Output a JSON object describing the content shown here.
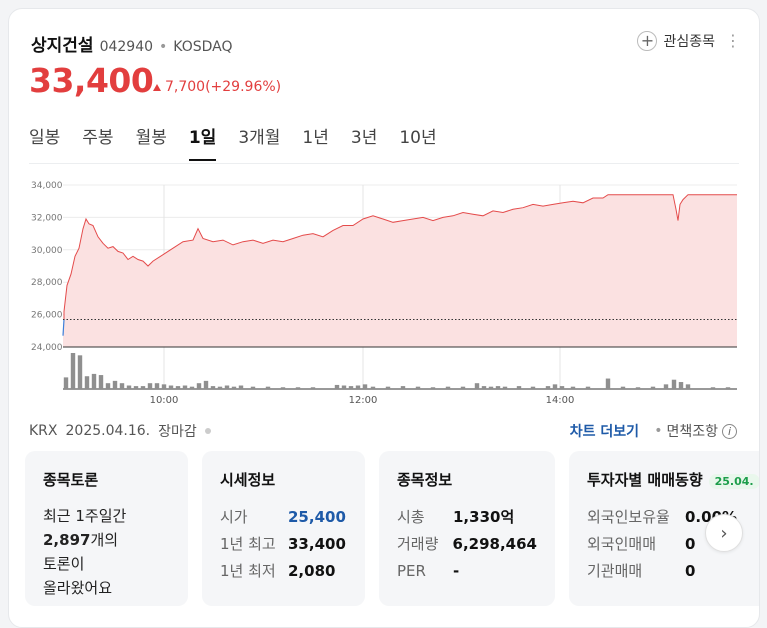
{
  "stock": {
    "name": "상지건설",
    "code": "042940",
    "sep": "•",
    "market": "KOSDAQ",
    "price": "33,400",
    "change": "7,700(+29.96%)",
    "watch_label": "관심종목",
    "more_icon": "⋮"
  },
  "tabs": [
    "일봉",
    "주봉",
    "월봉",
    "1일",
    "3개월",
    "1년",
    "3년",
    "10년"
  ],
  "active_tab": "1일",
  "meta": {
    "exchange": "KRX",
    "date": "2025.04.16.",
    "status": "장마감",
    "chart_link": "차트 더보기",
    "sep": "•",
    "disclaimer": "면책조항"
  },
  "chart_data": {
    "type": "area",
    "y_ticks": [
      "34,000",
      "32,000",
      "30,000",
      "28,000",
      "26,000",
      "24,000"
    ],
    "x_ticks": [
      "10:00",
      "12:00",
      "14:00"
    ],
    "ylim": [
      24000,
      34000
    ],
    "baseline": 25700,
    "colors": {
      "line": "#e44b4b",
      "fill": "#fbe1e1",
      "baseline": "#333333",
      "volume": "#8f8f8f"
    },
    "price_series": [
      {
        "t": 0,
        "v": 24700
      },
      {
        "t": 1,
        "v": 26200
      },
      {
        "t": 4,
        "v": 27800
      },
      {
        "t": 8,
        "v": 28500
      },
      {
        "t": 12,
        "v": 29600
      },
      {
        "t": 16,
        "v": 30100
      },
      {
        "t": 20,
        "v": 31300
      },
      {
        "t": 23,
        "v": 31900
      },
      {
        "t": 26,
        "v": 31600
      },
      {
        "t": 30,
        "v": 31500
      },
      {
        "t": 35,
        "v": 30800
      },
      {
        "t": 40,
        "v": 30400
      },
      {
        "t": 45,
        "v": 30100
      },
      {
        "t": 50,
        "v": 30200
      },
      {
        "t": 55,
        "v": 29900
      },
      {
        "t": 60,
        "v": 29800
      },
      {
        "t": 65,
        "v": 29400
      },
      {
        "t": 70,
        "v": 29600
      },
      {
        "t": 75,
        "v": 29400
      },
      {
        "t": 80,
        "v": 29300
      },
      {
        "t": 85,
        "v": 29000
      },
      {
        "t": 90,
        "v": 29300
      },
      {
        "t": 100,
        "v": 29700
      },
      {
        "t": 110,
        "v": 30100
      },
      {
        "t": 120,
        "v": 30500
      },
      {
        "t": 130,
        "v": 30600
      },
      {
        "t": 135,
        "v": 31300
      },
      {
        "t": 140,
        "v": 30700
      },
      {
        "t": 150,
        "v": 30500
      },
      {
        "t": 160,
        "v": 30600
      },
      {
        "t": 170,
        "v": 30300
      },
      {
        "t": 180,
        "v": 30500
      },
      {
        "t": 190,
        "v": 30600
      },
      {
        "t": 200,
        "v": 30400
      },
      {
        "t": 210,
        "v": 30600
      },
      {
        "t": 220,
        "v": 30500
      },
      {
        "t": 230,
        "v": 30700
      },
      {
        "t": 240,
        "v": 30900
      },
      {
        "t": 250,
        "v": 31000
      },
      {
        "t": 260,
        "v": 30800
      },
      {
        "t": 270,
        "v": 31200
      },
      {
        "t": 280,
        "v": 31500
      },
      {
        "t": 290,
        "v": 31500
      },
      {
        "t": 300,
        "v": 31900
      },
      {
        "t": 310,
        "v": 32100
      },
      {
        "t": 320,
        "v": 31900
      },
      {
        "t": 330,
        "v": 31700
      },
      {
        "t": 340,
        "v": 31800
      },
      {
        "t": 350,
        "v": 31900
      },
      {
        "t": 360,
        "v": 32000
      },
      {
        "t": 370,
        "v": 31800
      },
      {
        "t": 380,
        "v": 32000
      },
      {
        "t": 390,
        "v": 32100
      },
      {
        "t": 400,
        "v": 32300
      },
      {
        "t": 410,
        "v": 32200
      },
      {
        "t": 420,
        "v": 32100
      },
      {
        "t": 430,
        "v": 32400
      },
      {
        "t": 440,
        "v": 32300
      },
      {
        "t": 450,
        "v": 32500
      },
      {
        "t": 460,
        "v": 32600
      },
      {
        "t": 470,
        "v": 32800
      },
      {
        "t": 480,
        "v": 32700
      },
      {
        "t": 490,
        "v": 32800
      },
      {
        "t": 500,
        "v": 32900
      },
      {
        "t": 510,
        "v": 33000
      },
      {
        "t": 520,
        "v": 32900
      },
      {
        "t": 530,
        "v": 33200
      },
      {
        "t": 540,
        "v": 33200
      },
      {
        "t": 545,
        "v": 33400
      },
      {
        "t": 560,
        "v": 33400
      },
      {
        "t": 580,
        "v": 33400
      },
      {
        "t": 600,
        "v": 33400
      },
      {
        "t": 610,
        "v": 33400
      },
      {
        "t": 613,
        "v": 32500
      },
      {
        "t": 615,
        "v": 31800
      },
      {
        "t": 617,
        "v": 32800
      },
      {
        "t": 620,
        "v": 33100
      },
      {
        "t": 625,
        "v": 33400
      },
      {
        "t": 650,
        "v": 33400
      },
      {
        "t": 674,
        "v": 33400
      }
    ],
    "time_ticks_t": [
      101,
      300,
      497
    ],
    "volume_bars": [
      {
        "t": 3,
        "v": 20
      },
      {
        "t": 10,
        "v": 62
      },
      {
        "t": 17,
        "v": 58
      },
      {
        "t": 24,
        "v": 22
      },
      {
        "t": 31,
        "v": 26
      },
      {
        "t": 38,
        "v": 24
      },
      {
        "t": 45,
        "v": 10
      },
      {
        "t": 52,
        "v": 14
      },
      {
        "t": 59,
        "v": 10
      },
      {
        "t": 66,
        "v": 6
      },
      {
        "t": 73,
        "v": 5
      },
      {
        "t": 80,
        "v": 5
      },
      {
        "t": 87,
        "v": 10
      },
      {
        "t": 94,
        "v": 10
      },
      {
        "t": 101,
        "v": 8
      },
      {
        "t": 108,
        "v": 6
      },
      {
        "t": 115,
        "v": 5
      },
      {
        "t": 122,
        "v": 6
      },
      {
        "t": 129,
        "v": 4
      },
      {
        "t": 136,
        "v": 10
      },
      {
        "t": 143,
        "v": 14
      },
      {
        "t": 150,
        "v": 5
      },
      {
        "t": 157,
        "v": 4
      },
      {
        "t": 164,
        "v": 6
      },
      {
        "t": 171,
        "v": 4
      },
      {
        "t": 178,
        "v": 6
      },
      {
        "t": 190,
        "v": 4
      },
      {
        "t": 205,
        "v": 4
      },
      {
        "t": 220,
        "v": 3
      },
      {
        "t": 235,
        "v": 3
      },
      {
        "t": 250,
        "v": 3
      },
      {
        "t": 274,
        "v": 7
      },
      {
        "t": 281,
        "v": 6
      },
      {
        "t": 288,
        "v": 5
      },
      {
        "t": 295,
        "v": 6
      },
      {
        "t": 302,
        "v": 8
      },
      {
        "t": 310,
        "v": 4
      },
      {
        "t": 325,
        "v": 4
      },
      {
        "t": 340,
        "v": 5
      },
      {
        "t": 355,
        "v": 4
      },
      {
        "t": 370,
        "v": 3
      },
      {
        "t": 385,
        "v": 4
      },
      {
        "t": 400,
        "v": 4
      },
      {
        "t": 414,
        "v": 10
      },
      {
        "t": 421,
        "v": 5
      },
      {
        "t": 428,
        "v": 4
      },
      {
        "t": 435,
        "v": 5
      },
      {
        "t": 442,
        "v": 4
      },
      {
        "t": 456,
        "v": 5
      },
      {
        "t": 470,
        "v": 4
      },
      {
        "t": 485,
        "v": 5
      },
      {
        "t": 492,
        "v": 8
      },
      {
        "t": 499,
        "v": 5
      },
      {
        "t": 510,
        "v": 4
      },
      {
        "t": 525,
        "v": 4
      },
      {
        "t": 545,
        "v": 18
      },
      {
        "t": 560,
        "v": 4
      },
      {
        "t": 575,
        "v": 3
      },
      {
        "t": 590,
        "v": 4
      },
      {
        "t": 603,
        "v": 8
      },
      {
        "t": 611,
        "v": 16
      },
      {
        "t": 618,
        "v": 12
      },
      {
        "t": 625,
        "v": 8
      },
      {
        "t": 650,
        "v": 3
      },
      {
        "t": 665,
        "v": 3
      }
    ]
  },
  "panels": {
    "discussion": {
      "title": "종목토론",
      "line1": "최근 1주일간",
      "count": "2,897",
      "count_suffix": "개의",
      "line3": "토론이",
      "line4": "올라왔어요"
    },
    "quote": {
      "title": "시세정보",
      "rows": [
        {
          "label": "시가",
          "value": "25,400"
        },
        {
          "label": "1년 최고",
          "value": "33,400"
        },
        {
          "label": "1년 최저",
          "value": "2,080"
        }
      ]
    },
    "info": {
      "title": "종목정보",
      "rows": [
        {
          "label": "시총",
          "value": "1,330억"
        },
        {
          "label": "거래량",
          "value": "6,298,464"
        },
        {
          "label": "PER",
          "value": "-"
        }
      ]
    },
    "investor": {
      "title": "투자자별 매매동향",
      "badge": "25.04.",
      "rows": [
        {
          "label": "외국인보유율",
          "value": "0.00%"
        },
        {
          "label": "외국인매매",
          "value": "0"
        },
        {
          "label": "기관매매",
          "value": "0"
        }
      ]
    }
  }
}
